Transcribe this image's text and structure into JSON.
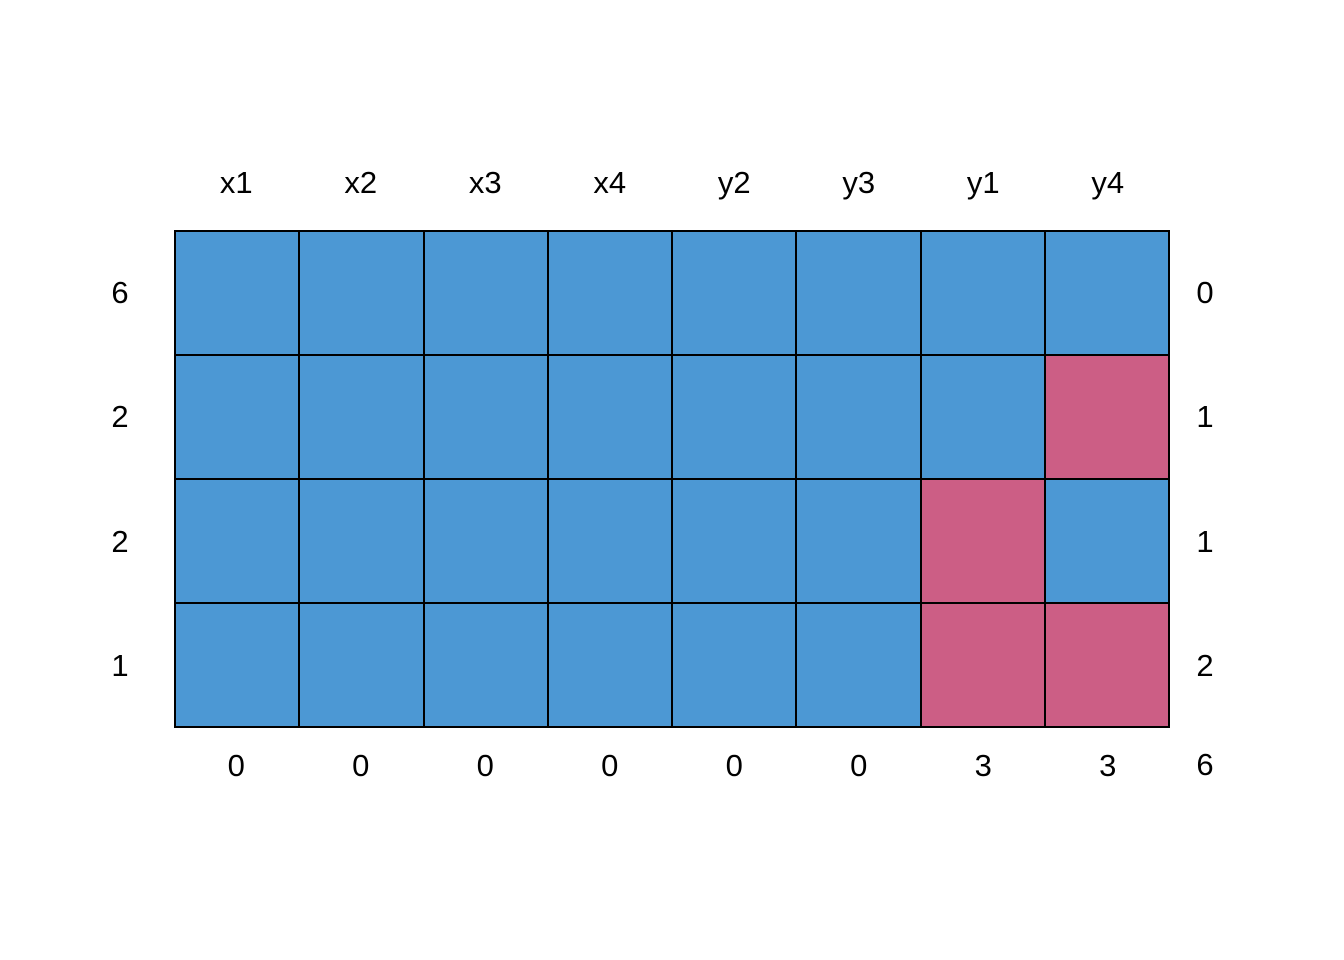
{
  "figure": {
    "background_color": "#FFFFFF"
  },
  "chart_data": {
    "type": "heatmap",
    "title": "",
    "description": "Missing data pattern plot (md.pattern style): each row is an observed missingness pattern; blue cell = variable observed (1), red cell = variable missing (0). Left axis = number of rows with that pattern, right axis = number of missing variables in the pattern, bottom axis = number of missing values per variable, bottom-right = total missing values.",
    "columns": [
      "x1",
      "x2",
      "x3",
      "x4",
      "y2",
      "y3",
      "y1",
      "y4"
    ],
    "rows": [
      {
        "count": 6,
        "pattern": [
          1,
          1,
          1,
          1,
          1,
          1,
          1,
          1
        ],
        "n_missing": 0
      },
      {
        "count": 2,
        "pattern": [
          1,
          1,
          1,
          1,
          1,
          1,
          1,
          0
        ],
        "n_missing": 1
      },
      {
        "count": 2,
        "pattern": [
          1,
          1,
          1,
          1,
          1,
          1,
          0,
          1
        ],
        "n_missing": 1
      },
      {
        "count": 1,
        "pattern": [
          1,
          1,
          1,
          1,
          1,
          1,
          0,
          0
        ],
        "n_missing": 2
      }
    ],
    "column_missing_counts": [
      0,
      0,
      0,
      0,
      0,
      0,
      3,
      3
    ],
    "total_missing": 6,
    "legend": {
      "observed_color": "#4C98D4",
      "missing_color": "#CC5E85",
      "border_color": "#000000",
      "observed_value": 1,
      "missing_value": 0
    },
    "layout_hints": {
      "grid_rows": 4,
      "grid_cols": 8,
      "column_labels_position": "top",
      "pattern_counts_position": "left",
      "pattern_missing_counts_position": "right",
      "column_missing_counts_position": "bottom",
      "gridlines": "black 2px cell borders"
    }
  }
}
